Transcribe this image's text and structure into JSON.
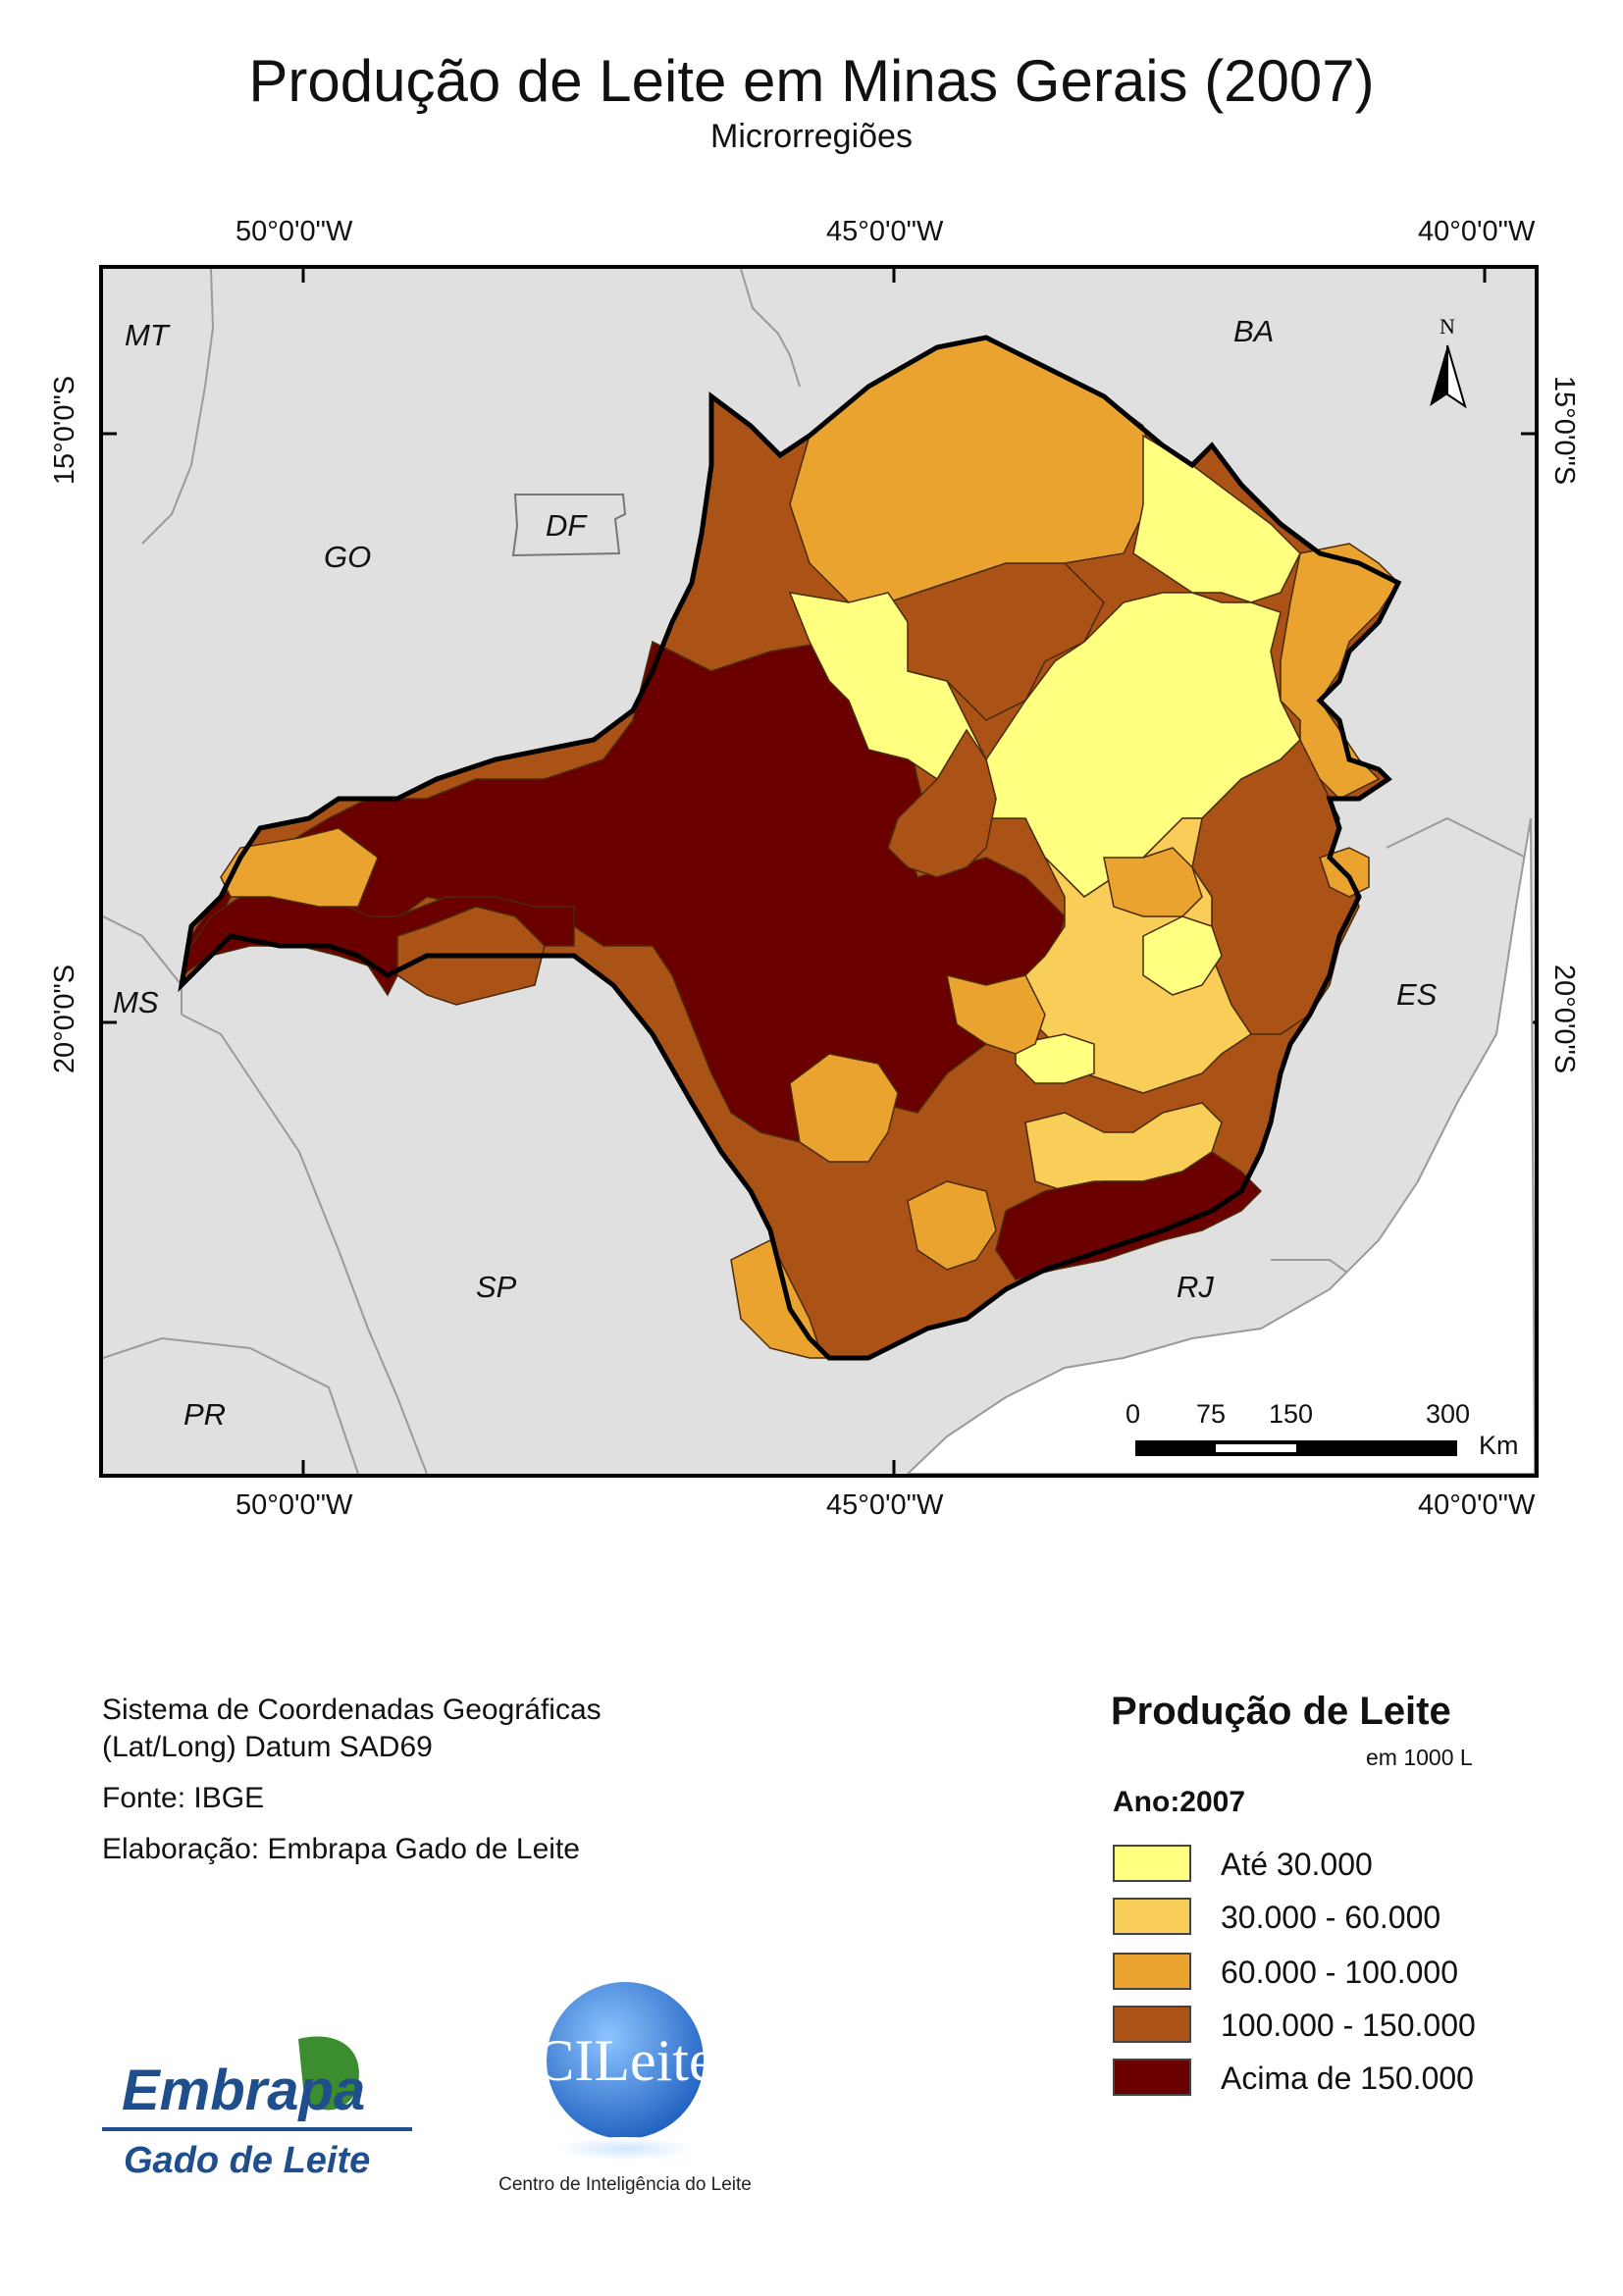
{
  "title": "Produção de Leite em Minas Gerais (2007)",
  "subtitle": "Microrregiões",
  "graticule": {
    "lon_top": [
      "50°0'0\"W",
      "45°0'0\"W",
      "40°0'0\"W"
    ],
    "lon_bottom": [
      "50°0'0\"W",
      "45°0'0\"W",
      "40°0'0\"W"
    ],
    "lat_left": [
      "15°0'0\"S",
      "20°0'0\"S"
    ],
    "lat_right": [
      "15°0'0\"S",
      "20°0'0\"S"
    ]
  },
  "states": [
    "MT",
    "BA",
    "GO",
    "DF",
    "MS",
    "ES",
    "SP",
    "RJ",
    "PR"
  ],
  "north_arrow": "N",
  "scale_bar": {
    "ticks": [
      "0",
      "75",
      "150",
      "300"
    ],
    "unit": "Km"
  },
  "info": {
    "coord_system_line1": "Sistema de Coordenadas Geográficas",
    "coord_system_line2": "(Lat/Long) Datum SAD69",
    "source": "Fonte: IBGE",
    "author": "Elaboração: Embrapa Gado de Leite"
  },
  "legend": {
    "title": "Produção de Leite",
    "unit": "em 1000 L",
    "year": "Ano:2007",
    "classes": [
      {
        "label": "Até 30.000",
        "color": "#ffff80"
      },
      {
        "label": "30.000 - 60.000",
        "color": "#f8cd58"
      },
      {
        "label": "60.000 - 100.000",
        "color": "#eba330"
      },
      {
        "label": "100.000 - 150.000",
        "color": "#ab5216"
      },
      {
        "label": "Acima de 150.000",
        "color": "#6b0000"
      }
    ]
  },
  "logos": {
    "embrapa_name": "Embrapa",
    "embrapa_sub": "Gado de Leite",
    "cileite_name": "CILeite",
    "cileite_sub": "Centro de Inteligência do Leite"
  },
  "colors": {
    "background_states": "#e0e0e0",
    "border": "#000000",
    "embrapa_blue": "#1f4e8c",
    "embrapa_green": "#3c8d2f"
  }
}
